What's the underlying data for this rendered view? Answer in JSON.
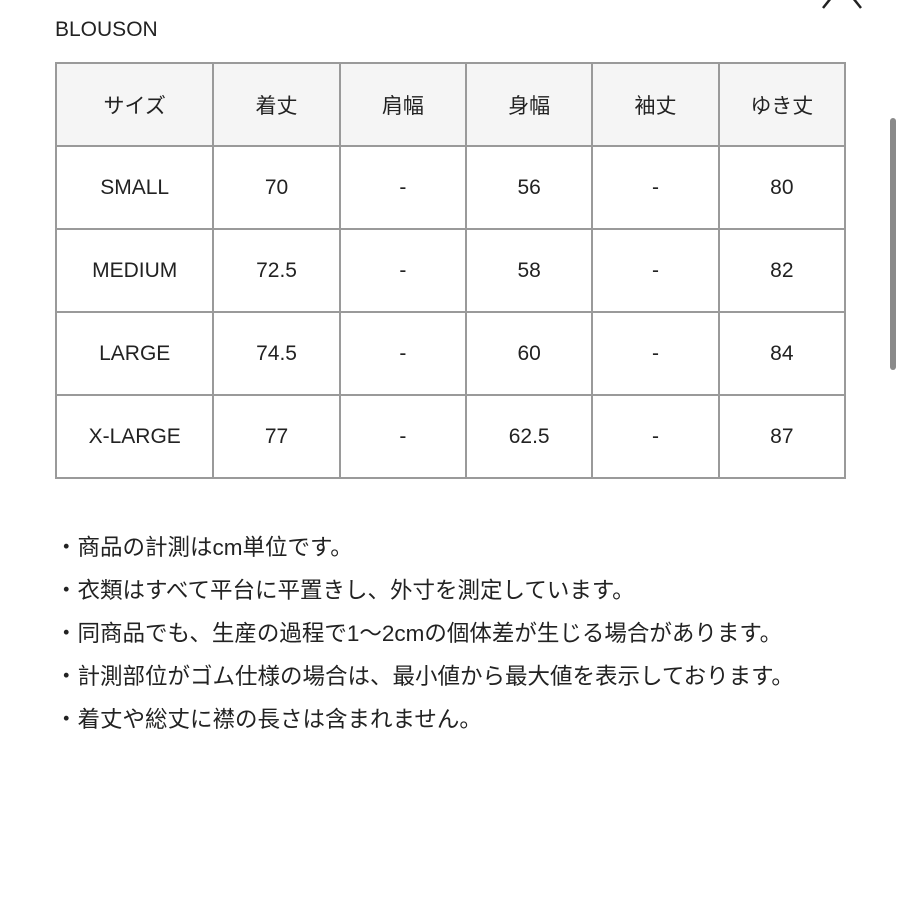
{
  "title": "BLOUSON",
  "table": {
    "headers": [
      "サイズ",
      "着丈",
      "肩幅",
      "身幅",
      "袖丈",
      "ゆき丈"
    ],
    "rows": [
      [
        "SMALL",
        "70",
        "-",
        "56",
        "-",
        "80"
      ],
      [
        "MEDIUM",
        "72.5",
        "-",
        "58",
        "-",
        "82"
      ],
      [
        "LARGE",
        "74.5",
        "-",
        "60",
        "-",
        "84"
      ],
      [
        "X-LARGE",
        "77",
        "-",
        "62.5",
        "-",
        "87"
      ]
    ]
  },
  "notes": [
    "・商品の計測はcm単位です。",
    "・衣類はすべて平台に平置きし、外寸を測定しています。",
    "・同商品でも、生産の過程で1〜2cmの個体差が生じる場合があります。",
    "・計測部位がゴム仕様の場合は、最小値から最大値を表示しております。",
    "・着丈や総丈に襟の長さは含まれません。"
  ],
  "icons": {
    "close": "close-icon"
  }
}
